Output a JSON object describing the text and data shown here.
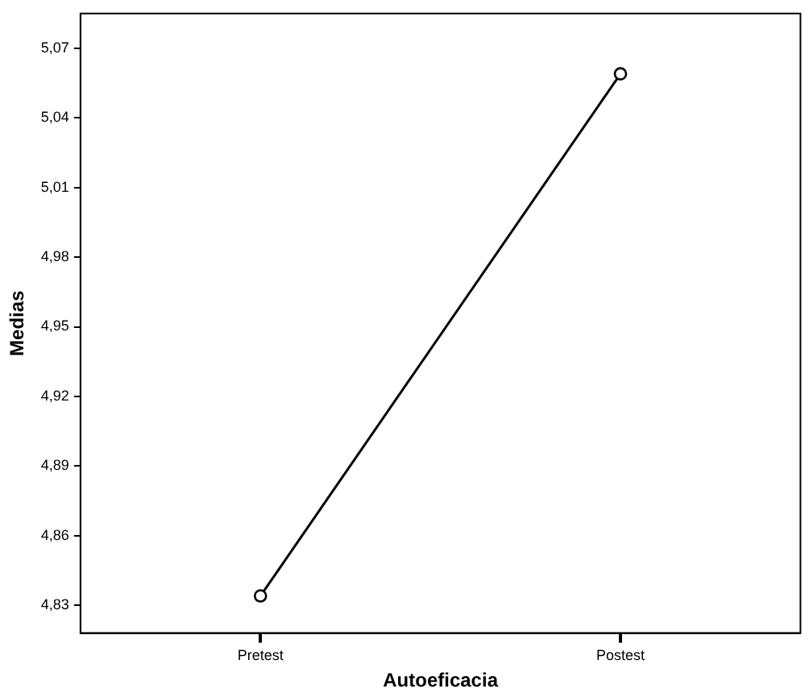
{
  "chart_data": {
    "type": "line",
    "xlabel": "Autoeficacia",
    "ylabel": "Medias",
    "categories": [
      "Pretest",
      "Postest"
    ],
    "series": [
      {
        "color": "#000000",
        "values": [
          4.834,
          5.059
        ]
      }
    ],
    "ylim": [
      4.818,
      5.085
    ],
    "yticks": [
      {
        "value": 4.83,
        "label": "4,83"
      },
      {
        "value": 4.86,
        "label": "4,86"
      },
      {
        "value": 4.89,
        "label": "4,89"
      },
      {
        "value": 4.92,
        "label": "4,92"
      },
      {
        "value": 4.95,
        "label": "4,95"
      },
      {
        "value": 4.98,
        "label": "4,98"
      },
      {
        "value": 5.01,
        "label": "5,01"
      },
      {
        "value": 5.04,
        "label": "5,04"
      },
      {
        "value": 5.07,
        "label": "5,07"
      }
    ],
    "grid": false,
    "legend": false,
    "marker": "circle",
    "line_style": "solid"
  }
}
